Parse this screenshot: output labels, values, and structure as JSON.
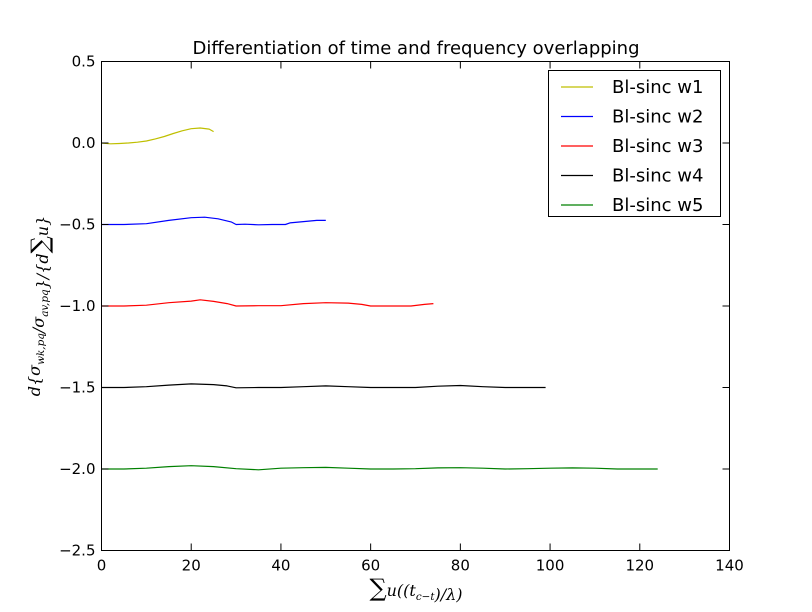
{
  "chart_data": {
    "type": "line",
    "title": "Differentiation of time and frequency overlapping",
    "xlabel": "∑u((t_c−t)/λ)",
    "ylabel": "d{σ_wk,pq/σ_av,pq}/{d∑u}",
    "xlim": [
      0,
      140
    ],
    "ylim": [
      -2.5,
      0.5
    ],
    "xticks": [
      0,
      20,
      40,
      60,
      80,
      100,
      120,
      140
    ],
    "yticks": [
      0.5,
      0.0,
      -0.5,
      -1.0,
      -1.5,
      -2.0,
      -2.5
    ],
    "xtick_labels": [
      "0",
      "20",
      "40",
      "60",
      "80",
      "100",
      "120",
      "140"
    ],
    "ytick_labels": [
      "0.5",
      "0.0",
      "−0.5",
      "−1.0",
      "−1.5",
      "−2.0",
      "−2.5"
    ],
    "grid": false,
    "legend_position": "top-right",
    "series": [
      {
        "name": "Bl-sinc w1",
        "color": "#bfbf00",
        "x": [
          0,
          2,
          4,
          6,
          8,
          10,
          12,
          14,
          16,
          18,
          20,
          22,
          24,
          25
        ],
        "y": [
          0.0,
          -0.005,
          -0.003,
          0.0,
          0.005,
          0.012,
          0.025,
          0.04,
          0.058,
          0.075,
          0.088,
          0.092,
          0.085,
          0.07
        ]
      },
      {
        "name": "Bl-sinc w2",
        "color": "#0000ff",
        "x": [
          0,
          5,
          10,
          15,
          20,
          23,
          26,
          29,
          30,
          32,
          35,
          38,
          41,
          42,
          45,
          48,
          50
        ],
        "y": [
          -0.5,
          -0.5,
          -0.495,
          -0.475,
          -0.458,
          -0.455,
          -0.465,
          -0.485,
          -0.5,
          -0.498,
          -0.502,
          -0.5,
          -0.5,
          -0.49,
          -0.482,
          -0.475,
          -0.475
        ]
      },
      {
        "name": "Bl-sinc w3",
        "color": "#ff0000",
        "x": [
          0,
          5,
          10,
          15,
          20,
          22,
          25,
          28,
          30,
          35,
          40,
          45,
          50,
          55,
          58,
          60,
          65,
          69,
          72,
          74
        ],
        "y": [
          -1.0,
          -1.0,
          -0.995,
          -0.98,
          -0.97,
          -0.962,
          -0.972,
          -0.985,
          -1.0,
          -0.998,
          -0.998,
          -0.985,
          -0.98,
          -0.982,
          -0.99,
          -1.0,
          -1.0,
          -1.0,
          -0.99,
          -0.985
        ]
      },
      {
        "name": "Bl-sinc w4",
        "color": "#000000",
        "x": [
          0,
          5,
          10,
          15,
          20,
          25,
          28,
          30,
          35,
          40,
          45,
          50,
          55,
          60,
          65,
          70,
          75,
          80,
          85,
          90,
          95,
          99
        ],
        "y": [
          -1.5,
          -1.5,
          -1.495,
          -1.485,
          -1.478,
          -1.482,
          -1.49,
          -1.502,
          -1.5,
          -1.5,
          -1.495,
          -1.49,
          -1.495,
          -1.5,
          -1.5,
          -1.5,
          -1.492,
          -1.488,
          -1.495,
          -1.5,
          -1.5,
          -1.5
        ]
      },
      {
        "name": "Bl-sinc w5",
        "color": "#008000",
        "x": [
          0,
          5,
          10,
          15,
          20,
          25,
          30,
          35,
          40,
          45,
          50,
          55,
          60,
          65,
          70,
          75,
          80,
          85,
          90,
          95,
          100,
          105,
          110,
          115,
          120,
          124
        ],
        "y": [
          -2.0,
          -2.0,
          -1.995,
          -1.985,
          -1.98,
          -1.985,
          -1.998,
          -2.005,
          -1.995,
          -1.992,
          -1.99,
          -1.995,
          -2.0,
          -2.0,
          -1.998,
          -1.993,
          -1.992,
          -1.995,
          -2.0,
          -1.998,
          -1.995,
          -1.993,
          -1.995,
          -2.0,
          -2.0,
          -2.0
        ]
      }
    ]
  }
}
